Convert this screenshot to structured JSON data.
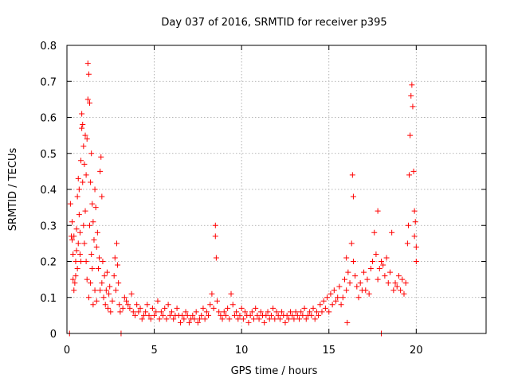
{
  "chart_data": {
    "type": "scatter",
    "title": "Day 037 of 2016, SRMTID for receiver p395",
    "xlabel": "GPS time / hours",
    "ylabel": "SRMTID / TECUs",
    "xlim": [
      0,
      24
    ],
    "ylim": [
      0,
      0.8
    ],
    "xticks": [
      0,
      5,
      10,
      15,
      20
    ],
    "yticks": [
      0,
      0.1,
      0.2,
      0.3,
      0.4,
      0.5,
      0.6,
      0.7,
      0.8
    ],
    "xtick_labels": [
      "0",
      "5",
      "10",
      "15",
      "20"
    ],
    "ytick_labels": [
      "0",
      "0.1",
      "0.2",
      "0.3",
      "0.4",
      "0.5",
      "0.6",
      "0.7",
      "0.8"
    ],
    "grid": true,
    "marker": "+",
    "color": "#ff0000",
    "series": [
      {
        "name": "SRMTID",
        "points": [
          [
            0.15,
            0.0
          ],
          [
            0.2,
            0.36
          ],
          [
            0.25,
            0.27
          ],
          [
            0.3,
            0.31
          ],
          [
            0.3,
            0.26
          ],
          [
            0.35,
            0.15
          ],
          [
            0.35,
            0.22
          ],
          [
            0.4,
            0.12
          ],
          [
            0.4,
            0.27
          ],
          [
            0.45,
            0.14
          ],
          [
            0.5,
            0.2
          ],
          [
            0.5,
            0.16
          ],
          [
            0.55,
            0.23
          ],
          [
            0.55,
            0.29
          ],
          [
            0.6,
            0.38
          ],
          [
            0.6,
            0.18
          ],
          [
            0.65,
            0.43
          ],
          [
            0.65,
            0.25
          ],
          [
            0.7,
            0.4
          ],
          [
            0.7,
            0.33
          ],
          [
            0.75,
            0.22
          ],
          [
            0.75,
            0.28
          ],
          [
            0.8,
            0.2
          ],
          [
            0.8,
            0.48
          ],
          [
            0.85,
            0.61
          ],
          [
            0.85,
            0.57
          ],
          [
            0.9,
            0.58
          ],
          [
            0.9,
            0.42
          ],
          [
            0.95,
            0.52
          ],
          [
            0.95,
            0.3
          ],
          [
            1.0,
            0.47
          ],
          [
            1.0,
            0.25
          ],
          [
            1.05,
            0.55
          ],
          [
            1.05,
            0.34
          ],
          [
            1.1,
            0.44
          ],
          [
            1.1,
            0.2
          ],
          [
            1.15,
            0.54
          ],
          [
            1.15,
            0.15
          ],
          [
            1.2,
            0.75
          ],
          [
            1.2,
            0.65
          ],
          [
            1.25,
            0.72
          ],
          [
            1.25,
            0.1
          ],
          [
            1.3,
            0.64
          ],
          [
            1.3,
            0.3
          ],
          [
            1.35,
            0.42
          ],
          [
            1.35,
            0.14
          ],
          [
            1.4,
            0.5
          ],
          [
            1.4,
            0.22
          ],
          [
            1.45,
            0.36
          ],
          [
            1.45,
            0.18
          ],
          [
            1.5,
            0.31
          ],
          [
            1.5,
            0.08
          ],
          [
            1.55,
            0.26
          ],
          [
            1.6,
            0.4
          ],
          [
            1.6,
            0.12
          ],
          [
            1.65,
            0.35
          ],
          [
            1.7,
            0.24
          ],
          [
            1.7,
            0.09
          ],
          [
            1.75,
            0.28
          ],
          [
            1.8,
            0.18
          ],
          [
            1.85,
            0.21
          ],
          [
            1.9,
            0.45
          ],
          [
            1.9,
            0.12
          ],
          [
            1.95,
            0.49
          ],
          [
            2.0,
            0.38
          ],
          [
            2.0,
            0.14
          ],
          [
            2.05,
            0.2
          ],
          [
            2.1,
            0.1
          ],
          [
            2.15,
            0.16
          ],
          [
            2.2,
            0.08
          ],
          [
            2.25,
            0.12
          ],
          [
            2.3,
            0.17
          ],
          [
            2.35,
            0.07
          ],
          [
            2.4,
            0.11
          ],
          [
            2.45,
            0.13
          ],
          [
            2.5,
            0.06
          ],
          [
            2.6,
            0.09
          ],
          [
            2.7,
            0.16
          ],
          [
            2.75,
            0.21
          ],
          [
            2.8,
            0.12
          ],
          [
            2.85,
            0.25
          ],
          [
            2.9,
            0.19
          ],
          [
            2.95,
            0.14
          ],
          [
            3.0,
            0.08
          ],
          [
            3.05,
            0.06
          ],
          [
            3.1,
            0.0
          ],
          [
            3.2,
            0.07
          ],
          [
            3.3,
            0.1
          ],
          [
            3.4,
            0.09
          ],
          [
            3.5,
            0.08
          ],
          [
            3.6,
            0.07
          ],
          [
            3.7,
            0.11
          ],
          [
            3.8,
            0.06
          ],
          [
            3.9,
            0.05
          ],
          [
            4.0,
            0.08
          ],
          [
            4.1,
            0.06
          ],
          [
            4.2,
            0.07
          ],
          [
            4.3,
            0.04
          ],
          [
            4.4,
            0.05
          ],
          [
            4.5,
            0.06
          ],
          [
            4.6,
            0.08
          ],
          [
            4.7,
            0.05
          ],
          [
            4.8,
            0.04
          ],
          [
            4.9,
            0.07
          ],
          [
            5.0,
            0.05
          ],
          [
            5.1,
            0.06
          ],
          [
            5.2,
            0.09
          ],
          [
            5.3,
            0.04
          ],
          [
            5.4,
            0.06
          ],
          [
            5.5,
            0.05
          ],
          [
            5.6,
            0.07
          ],
          [
            5.7,
            0.04
          ],
          [
            5.8,
            0.08
          ],
          [
            5.9,
            0.05
          ],
          [
            6.0,
            0.06
          ],
          [
            6.1,
            0.04
          ],
          [
            6.2,
            0.05
          ],
          [
            6.3,
            0.07
          ],
          [
            6.4,
            0.05
          ],
          [
            6.5,
            0.03
          ],
          [
            6.6,
            0.05
          ],
          [
            6.7,
            0.04
          ],
          [
            6.8,
            0.06
          ],
          [
            6.9,
            0.05
          ],
          [
            7.0,
            0.03
          ],
          [
            7.1,
            0.04
          ],
          [
            7.2,
            0.05
          ],
          [
            7.3,
            0.04
          ],
          [
            7.4,
            0.06
          ],
          [
            7.5,
            0.03
          ],
          [
            7.6,
            0.04
          ],
          [
            7.7,
            0.05
          ],
          [
            7.8,
            0.07
          ],
          [
            7.9,
            0.04
          ],
          [
            8.0,
            0.06
          ],
          [
            8.1,
            0.05
          ],
          [
            8.2,
            0.08
          ],
          [
            8.3,
            0.11
          ],
          [
            8.4,
            0.07
          ],
          [
            8.5,
            0.3
          ],
          [
            8.5,
            0.27
          ],
          [
            8.55,
            0.21
          ],
          [
            8.6,
            0.09
          ],
          [
            8.7,
            0.06
          ],
          [
            8.8,
            0.05
          ],
          [
            8.9,
            0.04
          ],
          [
            9.0,
            0.06
          ],
          [
            9.1,
            0.05
          ],
          [
            9.2,
            0.07
          ],
          [
            9.3,
            0.04
          ],
          [
            9.4,
            0.11
          ],
          [
            9.5,
            0.08
          ],
          [
            9.6,
            0.05
          ],
          [
            9.7,
            0.06
          ],
          [
            9.8,
            0.04
          ],
          [
            9.9,
            0.05
          ],
          [
            10.0,
            0.07
          ],
          [
            10.1,
            0.04
          ],
          [
            10.2,
            0.06
          ],
          [
            10.3,
            0.05
          ],
          [
            10.4,
            0.03
          ],
          [
            10.5,
            0.05
          ],
          [
            10.6,
            0.06
          ],
          [
            10.7,
            0.04
          ],
          [
            10.8,
            0.07
          ],
          [
            10.9,
            0.05
          ],
          [
            11.0,
            0.04
          ],
          [
            11.1,
            0.06
          ],
          [
            11.2,
            0.05
          ],
          [
            11.3,
            0.03
          ],
          [
            11.4,
            0.05
          ],
          [
            11.5,
            0.06
          ],
          [
            11.6,
            0.04
          ],
          [
            11.7,
            0.05
          ],
          [
            11.8,
            0.07
          ],
          [
            11.9,
            0.04
          ],
          [
            12.0,
            0.06
          ],
          [
            12.1,
            0.05
          ],
          [
            12.2,
            0.04
          ],
          [
            12.3,
            0.06
          ],
          [
            12.4,
            0.05
          ],
          [
            12.5,
            0.03
          ],
          [
            12.6,
            0.05
          ],
          [
            12.7,
            0.04
          ],
          [
            12.8,
            0.06
          ],
          [
            12.9,
            0.05
          ],
          [
            13.0,
            0.04
          ],
          [
            13.1,
            0.06
          ],
          [
            13.2,
            0.05
          ],
          [
            13.3,
            0.04
          ],
          [
            13.4,
            0.06
          ],
          [
            13.5,
            0.05
          ],
          [
            13.6,
            0.07
          ],
          [
            13.7,
            0.04
          ],
          [
            13.8,
            0.05
          ],
          [
            13.9,
            0.06
          ],
          [
            14.0,
            0.05
          ],
          [
            14.1,
            0.07
          ],
          [
            14.2,
            0.04
          ],
          [
            14.3,
            0.06
          ],
          [
            14.4,
            0.05
          ],
          [
            14.5,
            0.08
          ],
          [
            14.6,
            0.06
          ],
          [
            14.7,
            0.09
          ],
          [
            14.8,
            0.07
          ],
          [
            14.9,
            0.1
          ],
          [
            15.0,
            0.06
          ],
          [
            15.1,
            0.11
          ],
          [
            15.2,
            0.08
          ],
          [
            15.3,
            0.12
          ],
          [
            15.4,
            0.09
          ],
          [
            15.5,
            0.1
          ],
          [
            15.6,
            0.13
          ],
          [
            15.7,
            0.08
          ],
          [
            15.8,
            0.1
          ],
          [
            15.9,
            0.15
          ],
          [
            16.0,
            0.21
          ],
          [
            16.0,
            0.12
          ],
          [
            16.05,
            0.03
          ],
          [
            16.1,
            0.17
          ],
          [
            16.2,
            0.14
          ],
          [
            16.3,
            0.25
          ],
          [
            16.35,
            0.44
          ],
          [
            16.4,
            0.38
          ],
          [
            16.4,
            0.2
          ],
          [
            16.5,
            0.16
          ],
          [
            16.6,
            0.13
          ],
          [
            16.7,
            0.1
          ],
          [
            16.8,
            0.14
          ],
          [
            16.9,
            0.12
          ],
          [
            17.0,
            0.17
          ],
          [
            17.1,
            0.12
          ],
          [
            17.2,
            0.15
          ],
          [
            17.3,
            0.11
          ],
          [
            17.4,
            0.18
          ],
          [
            17.5,
            0.2
          ],
          [
            17.6,
            0.28
          ],
          [
            17.7,
            0.22
          ],
          [
            17.8,
            0.34
          ],
          [
            17.8,
            0.15
          ],
          [
            17.9,
            0.18
          ],
          [
            18.0,
            0.2
          ],
          [
            18.0,
            0.0
          ],
          [
            18.1,
            0.19
          ],
          [
            18.2,
            0.16
          ],
          [
            18.3,
            0.21
          ],
          [
            18.4,
            0.14
          ],
          [
            18.5,
            0.17
          ],
          [
            18.6,
            0.28
          ],
          [
            18.7,
            0.12
          ],
          [
            18.8,
            0.14
          ],
          [
            18.9,
            0.13
          ],
          [
            19.0,
            0.16
          ],
          [
            19.1,
            0.12
          ],
          [
            19.2,
            0.15
          ],
          [
            19.3,
            0.11
          ],
          [
            19.4,
            0.14
          ],
          [
            19.5,
            0.25
          ],
          [
            19.55,
            0.3
          ],
          [
            19.6,
            0.44
          ],
          [
            19.65,
            0.55
          ],
          [
            19.7,
            0.66
          ],
          [
            19.75,
            0.69
          ],
          [
            19.8,
            0.63
          ],
          [
            19.85,
            0.45
          ],
          [
            19.9,
            0.34
          ],
          [
            19.9,
            0.27
          ],
          [
            19.95,
            0.31
          ],
          [
            20.0,
            0.24
          ],
          [
            20.0,
            0.2
          ]
        ]
      }
    ]
  }
}
